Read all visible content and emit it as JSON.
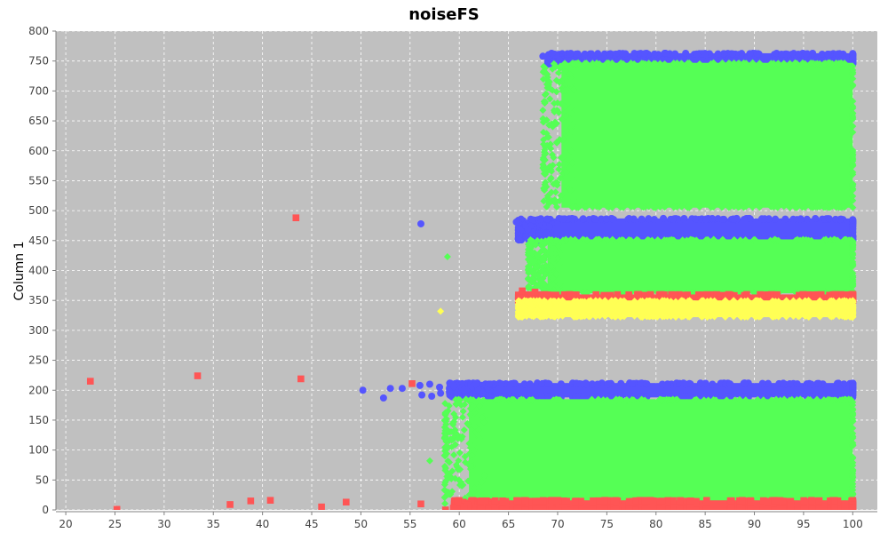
{
  "chart_data": {
    "type": "scatter",
    "title": "noiseFS",
    "xlabel": "",
    "ylabel": "Column 1",
    "xlim": [
      19,
      102.5
    ],
    "ylim": [
      0,
      800
    ],
    "xticks": [
      20,
      25,
      30,
      35,
      40,
      45,
      50,
      55,
      60,
      65,
      70,
      75,
      80,
      85,
      90,
      95,
      100
    ],
    "yticks": [
      0,
      50,
      100,
      150,
      200,
      250,
      300,
      350,
      400,
      450,
      500,
      550,
      600,
      650,
      700,
      750,
      800
    ],
    "grid": true,
    "legend": "none",
    "colors": {
      "plot_background": "#c0c0c0",
      "grid": "#ffffff",
      "blue": "#5555ff",
      "green": "#55ff55",
      "red": "#ff5555",
      "yellow": "#ffff55"
    },
    "series": [
      {
        "marker": "circle",
        "color": "#5555ff",
        "outliers": [
          [
            56.1,
            478
          ],
          [
            50.2,
            200
          ],
          [
            52.3,
            187
          ],
          [
            53.0,
            203
          ],
          [
            54.2,
            203
          ],
          [
            56.0,
            208
          ],
          [
            57.0,
            210
          ],
          [
            58.0,
            205
          ],
          [
            56.2,
            192
          ],
          [
            57.2,
            190
          ],
          [
            58.1,
            195
          ],
          [
            59.0,
            198
          ],
          [
            65.8,
            481
          ],
          [
            68.5,
            758
          ]
        ],
        "bands": [
          {
            "x": [
              59,
              100
            ],
            "y": [
              188,
              212
            ]
          },
          {
            "x": [
              66,
              100
            ],
            "y": [
              450,
              487
            ]
          },
          {
            "x": [
              69,
              100
            ],
            "y": [
              745,
              763
            ]
          }
        ]
      },
      {
        "marker": "diamond",
        "color": "#55ff55",
        "outliers": [
          [
            58.8,
            423
          ],
          [
            57.0,
            82
          ],
          [
            59.0,
            130
          ],
          [
            67.2,
            420
          ],
          [
            67.5,
            415
          ],
          [
            68.5,
            380
          ]
        ],
        "bands": [
          {
            "x": [
              58.5,
              100
            ],
            "y": [
              10,
              185
            ]
          },
          {
            "x": [
              67,
              100
            ],
            "y": [
              362,
              452
            ]
          },
          {
            "x": [
              68.5,
              100
            ],
            "y": [
              505,
              747
            ]
          }
        ]
      },
      {
        "marker": "square",
        "color": "#ff5555",
        "outliers": [
          [
            22.5,
            215
          ],
          [
            25.2,
            1
          ],
          [
            33.4,
            224
          ],
          [
            36.7,
            9
          ],
          [
            38.8,
            15
          ],
          [
            40.8,
            16
          ],
          [
            43.4,
            488
          ],
          [
            43.9,
            219
          ],
          [
            46.0,
            5
          ],
          [
            48.5,
            13
          ],
          [
            55.2,
            211
          ],
          [
            56.1,
            10
          ],
          [
            58.6,
            0
          ],
          [
            59.4,
            3
          ],
          [
            66.4,
            366
          ],
          [
            66.7,
            354
          ],
          [
            67.7,
            364
          ],
          [
            71.2,
            360
          ]
        ],
        "bands": [
          {
            "x": [
              59.5,
              100
            ],
            "y": [
              0,
              16
            ]
          },
          {
            "x": [
              66,
              100
            ],
            "y": [
              350,
              360
            ]
          }
        ]
      },
      {
        "marker": "diamond",
        "color": "#ffff55",
        "outliers": [
          [
            58.1,
            332
          ],
          [
            66.2,
            325
          ],
          [
            66.6,
            340
          ]
        ],
        "bands": [
          {
            "x": [
              66,
              100
            ],
            "y": [
              322,
              350
            ]
          }
        ]
      }
    ]
  }
}
